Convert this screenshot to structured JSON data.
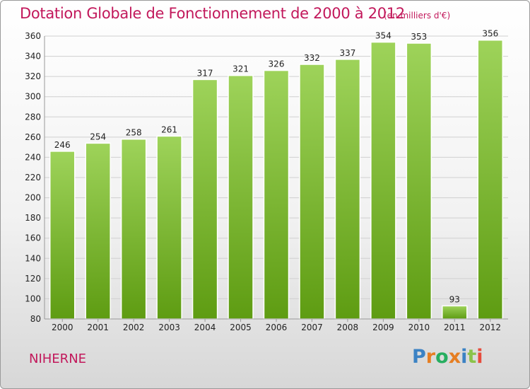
{
  "title": "Dotation Globale de Fonctionnement de 2000 à 2012",
  "subtitle": "(en milliers d'€)",
  "commune": "NIHERNE",
  "logo": {
    "text": "Proxiti",
    "letters": [
      "P",
      "r",
      "o",
      "x",
      "i",
      "t",
      "i"
    ],
    "colors": [
      "#3b82c4",
      "#e67e22",
      "#27ae60",
      "#e67e22",
      "#3b82c4",
      "#8bc34a",
      "#e74c3c"
    ]
  },
  "colors": {
    "bar_top": "#9ed35a",
    "bar_bottom": "#5e9c12",
    "title": "#c2185b",
    "grid": "#d0d0d0"
  },
  "chart_data": {
    "type": "bar",
    "categories": [
      "2000",
      "2001",
      "2002",
      "2003",
      "2004",
      "2005",
      "2006",
      "2007",
      "2008",
      "2009",
      "2010",
      "2011",
      "2012"
    ],
    "values": [
      246,
      254,
      258,
      261,
      317,
      321,
      326,
      332,
      337,
      354,
      353,
      93,
      356
    ],
    "ylim": [
      80,
      360
    ],
    "yticks": [
      80,
      100,
      120,
      140,
      160,
      180,
      200,
      220,
      240,
      260,
      280,
      300,
      320,
      340,
      360
    ],
    "grid": true,
    "xlabel": "",
    "ylabel": ""
  }
}
